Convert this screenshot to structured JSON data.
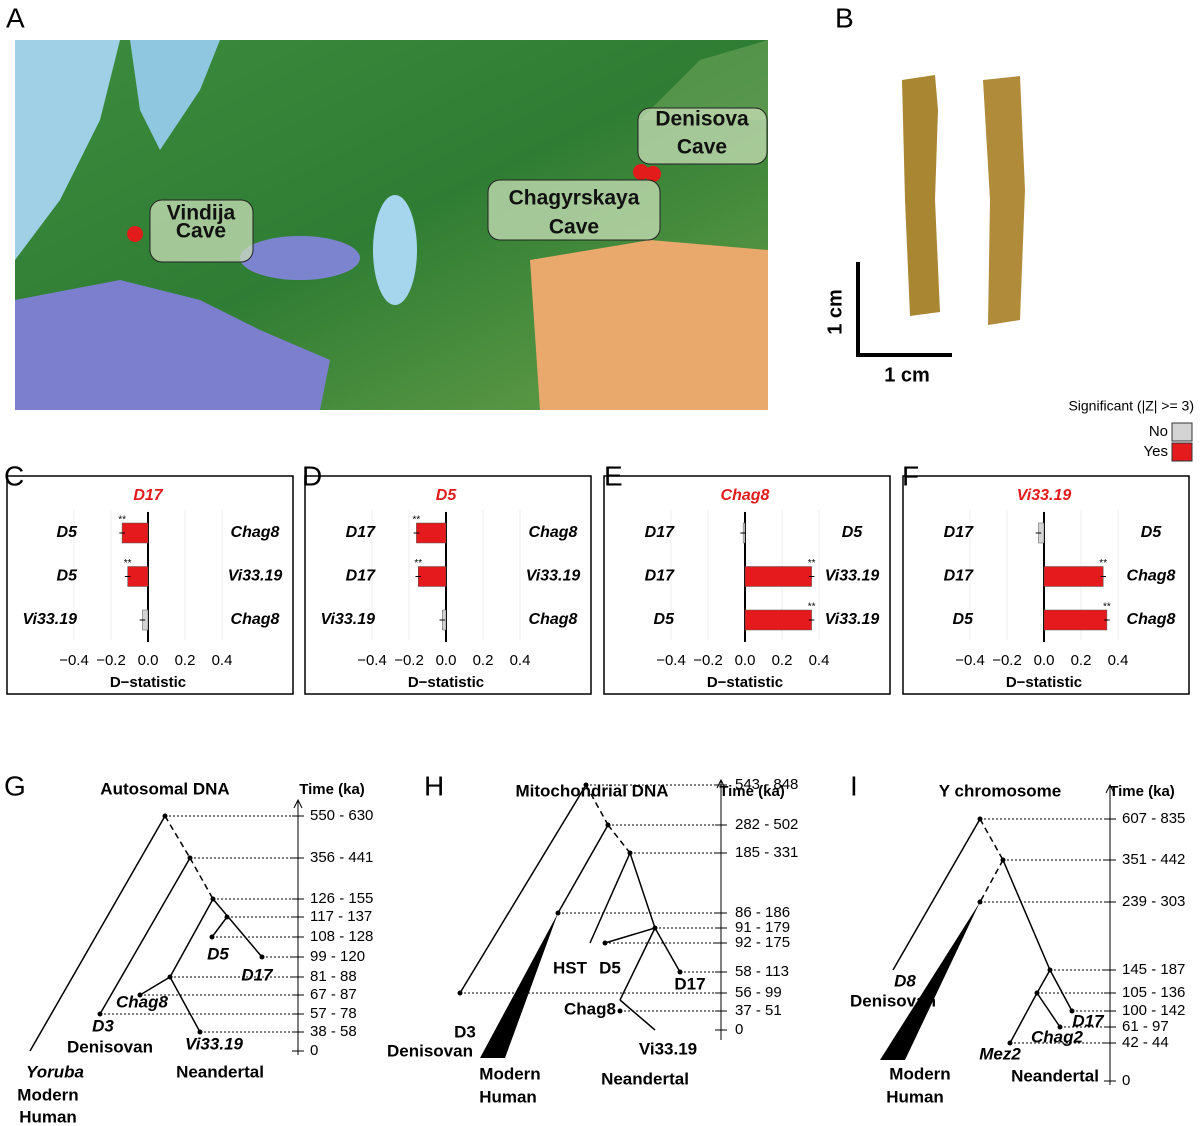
{
  "panel_labels": [
    "A",
    "B",
    "C",
    "D",
    "E",
    "F",
    "G",
    "H",
    "I"
  ],
  "map": {
    "sites": [
      [
        "Vindija",
        "Cave"
      ],
      [
        "Denisova",
        "Cave"
      ],
      [
        "Chagyrskaya",
        "Cave"
      ]
    ]
  },
  "photo": {
    "scale_vertical": "1 cm",
    "scale_horizontal": "1 cm"
  },
  "legend": {
    "title": "Significant (|Z| >= 3)",
    "items": [
      {
        "name": "No",
        "color": "#d4d4d4"
      },
      {
        "name": "Yes",
        "color": "#e41a1c"
      }
    ]
  },
  "chart_data": [
    {
      "type": "bar",
      "title": "D17",
      "xlabel": "D−statistic",
      "left_labels": [
        "D5",
        "D5",
        "Vi33.19"
      ],
      "right_labels": [
        "Chag8",
        "Vi33.19",
        "Chag8"
      ],
      "values": [
        -0.14,
        -0.11,
        -0.03
      ],
      "errors": [
        0.015,
        0.015,
        0.015
      ],
      "significant": [
        true,
        true,
        false
      ],
      "stars": [
        "**",
        "**",
        null
      ],
      "xlim": [
        -0.45,
        0.45
      ],
      "xticks": [
        {
          "value": -0.4,
          "label": "−0.4"
        },
        {
          "value": -0.2,
          "label": "−0.2"
        },
        {
          "value": 0,
          "label": "0.0"
        },
        0.2,
        0.4
      ],
      "grid": true
    },
    {
      "type": "bar",
      "title": "D5",
      "xlabel": "D−statistic",
      "left_labels": [
        "D17",
        "D17",
        "Vi33.19"
      ],
      "right_labels": [
        "Chag8",
        "Vi33.19",
        "Chag8"
      ],
      "values": [
        -0.16,
        -0.15,
        -0.02
      ],
      "errors": [
        0.015,
        0.015,
        0.015
      ],
      "significant": [
        true,
        true,
        false
      ],
      "stars": [
        "**",
        "**",
        null
      ],
      "xlim": [
        -0.45,
        0.45
      ],
      "xticks": [
        {
          "value": -0.4,
          "label": "−0.4"
        },
        {
          "value": -0.2,
          "label": "−0.2"
        },
        {
          "value": 0,
          "label": "0.0"
        },
        0.2,
        0.4
      ],
      "grid": true
    },
    {
      "type": "bar",
      "title": "Chag8",
      "xlabel": "D−statistic",
      "left_labels": [
        "D17",
        "D17",
        "D5"
      ],
      "right_labels": [
        "D5",
        "Vi33.19",
        "Vi33.19"
      ],
      "values": [
        -0.01,
        0.36,
        0.36
      ],
      "errors": [
        0.015,
        0.015,
        0.015
      ],
      "significant": [
        false,
        true,
        true
      ],
      "stars": [
        null,
        "**",
        "**"
      ],
      "xlim": [
        -0.45,
        0.45
      ],
      "xticks": [
        {
          "value": -0.4,
          "label": "−0.4"
        },
        {
          "value": -0.2,
          "label": "−0.2"
        },
        {
          "value": 0,
          "label": "0.0"
        },
        0.2,
        0.4
      ],
      "grid": true
    },
    {
      "type": "bar",
      "title": "Vi33.19",
      "xlabel": "D−statistic",
      "left_labels": [
        "D17",
        "D17",
        "D5"
      ],
      "right_labels": [
        "D5",
        "Chag8",
        "Chag8"
      ],
      "values": [
        -0.03,
        0.32,
        0.34
      ],
      "errors": [
        0.015,
        0.015,
        0.015
      ],
      "significant": [
        false,
        true,
        true
      ],
      "stars": [
        null,
        "**",
        "**"
      ],
      "xlim": [
        -0.45,
        0.45
      ],
      "xticks": [
        {
          "value": -0.4,
          "label": "−0.4"
        },
        {
          "value": -0.2,
          "label": "−0.2"
        },
        {
          "value": 0,
          "label": "0.0"
        },
        0.2,
        0.4
      ],
      "grid": true
    }
  ],
  "trees": [
    {
      "title": "Autosomal DNA",
      "time_label": "Time (ka)",
      "times": [
        "550 - 630",
        "356 - 441",
        "126 - 155",
        "117 - 137",
        "108 - 128",
        "99 - 120",
        "81 - 88",
        "67 - 87",
        "57 - 78",
        "38 - 58",
        "0"
      ],
      "taxa": [
        "Yoruba",
        "Modern",
        "Human",
        "D3",
        "Denisovan",
        "Chag8",
        "Vi33.19",
        "Neandertal",
        "D5",
        "D17"
      ]
    },
    {
      "title": "Mitochondrial DNA",
      "time_label": "Time (ka)",
      "times": [
        "543 - 848",
        "282 - 502",
        "185 - 331",
        "86 - 186",
        "91 - 179",
        "92 - 175",
        "58 - 113",
        "56 - 99",
        "37 - 51",
        "0"
      ],
      "taxa": [
        "D3",
        "Denisovan",
        "Modern",
        "Human",
        "HST",
        "D5",
        "D17",
        "Chag8",
        "Vi33.19",
        "Neandertal"
      ]
    },
    {
      "title": "Y chromosome",
      "time_label": "Time (ka)",
      "times": [
        "607 - 835",
        "351 - 442",
        "239 - 303",
        "145 - 187",
        "105 - 136",
        "100 - 142",
        "61 - 97",
        "42 - 44",
        "0"
      ],
      "taxa": [
        "D8",
        "Denisovan",
        "Mez2",
        "Chag2",
        "D17",
        "Neandertal",
        "Modern",
        "Human"
      ]
    }
  ]
}
